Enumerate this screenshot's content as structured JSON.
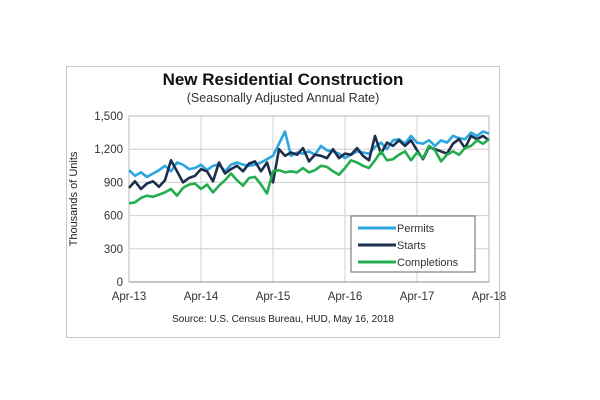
{
  "chart_data": {
    "type": "line",
    "title": "New Residential Construction",
    "subtitle": "(Seasonally Adjusted Annual Rate)",
    "xlabel": "",
    "ylabel": "Thousands of Units",
    "ylim": [
      0,
      1500
    ],
    "yticks": [
      "0",
      "300",
      "600",
      "900",
      "1,200",
      "1,500"
    ],
    "ytick_values": [
      0,
      300,
      600,
      900,
      1200,
      1500
    ],
    "xticks": [
      "Apr-13",
      "Apr-14",
      "Apr-15",
      "Apr-16",
      "Apr-17",
      "Apr-18"
    ],
    "x_start": "Apr-13",
    "x_end": "Apr-18",
    "x_frequency": "monthly",
    "grid": true,
    "legend_position": "bottom-right",
    "source": "Source:  U.S. Census Bureau, HUD, May 16, 2018",
    "series": [
      {
        "name": "Permits",
        "color": "#2ba6e0",
        "values": [
          1010,
          960,
          990,
          950,
          980,
          1010,
          1050,
          1000,
          1080,
          1060,
          1020,
          1030,
          1060,
          1010,
          1050,
          1060,
          1000,
          1060,
          1080,
          1060,
          1050,
          1060,
          1080,
          1110,
          1140,
          1250,
          1360,
          1140,
          1170,
          1160,
          1180,
          1150,
          1230,
          1190,
          1180,
          1160,
          1120,
          1150,
          1180,
          1170,
          1160,
          1220,
          1260,
          1200,
          1280,
          1290,
          1250,
          1320,
          1260,
          1250,
          1280,
          1230,
          1280,
          1260,
          1320,
          1300,
          1290,
          1350,
          1320,
          1360,
          1340
        ]
      },
      {
        "name": "Starts",
        "color": "#1d2f4d",
        "values": [
          850,
          910,
          840,
          890,
          910,
          860,
          920,
          1100,
          1000,
          900,
          940,
          960,
          1020,
          1000,
          910,
          1080,
          980,
          1020,
          1050,
          1000,
          1070,
          1090,
          1000,
          1080,
          900,
          1200,
          1140,
          1170,
          1150,
          1210,
          1090,
          1150,
          1140,
          1120,
          1200,
          1120,
          1160,
          1150,
          1210,
          1140,
          1100,
          1320,
          1160,
          1260,
          1230,
          1280,
          1230,
          1280,
          1190,
          1110,
          1220,
          1200,
          1180,
          1160,
          1250,
          1290,
          1210,
          1320,
          1290,
          1320,
          1280
        ]
      },
      {
        "name": "Completions",
        "color": "#23ad4e",
        "values": [
          710,
          720,
          760,
          780,
          770,
          790,
          810,
          840,
          780,
          850,
          880,
          890,
          840,
          880,
          810,
          870,
          920,
          980,
          920,
          870,
          940,
          950,
          880,
          800,
          1000,
          1010,
          990,
          1000,
          990,
          1030,
          990,
          1010,
          1050,
          1040,
          1000,
          970,
          1030,
          1100,
          1080,
          1050,
          1030,
          1100,
          1180,
          1100,
          1110,
          1150,
          1180,
          1100,
          1170,
          1120,
          1230,
          1190,
          1090,
          1150,
          1180,
          1150,
          1210,
          1230,
          1280,
          1250,
          1290
        ]
      }
    ]
  }
}
